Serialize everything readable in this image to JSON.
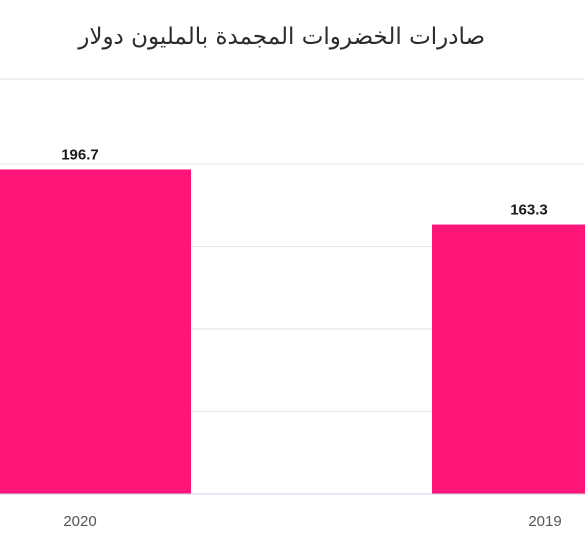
{
  "chart_data": {
    "type": "bar",
    "title": "صادرات الخضروات المجمدة بالمليون دولار",
    "categories": [
      "2020",
      "2019"
    ],
    "values": [
      196.7,
      163.3
    ],
    "value_labels": [
      "196.7",
      "163.3"
    ],
    "ylim": [
      0,
      200
    ],
    "grid": true,
    "legend": "none",
    "colors": {
      "bar": "#ff1478",
      "grid": "#e4e4ea",
      "axis": "#cfcde6"
    }
  }
}
